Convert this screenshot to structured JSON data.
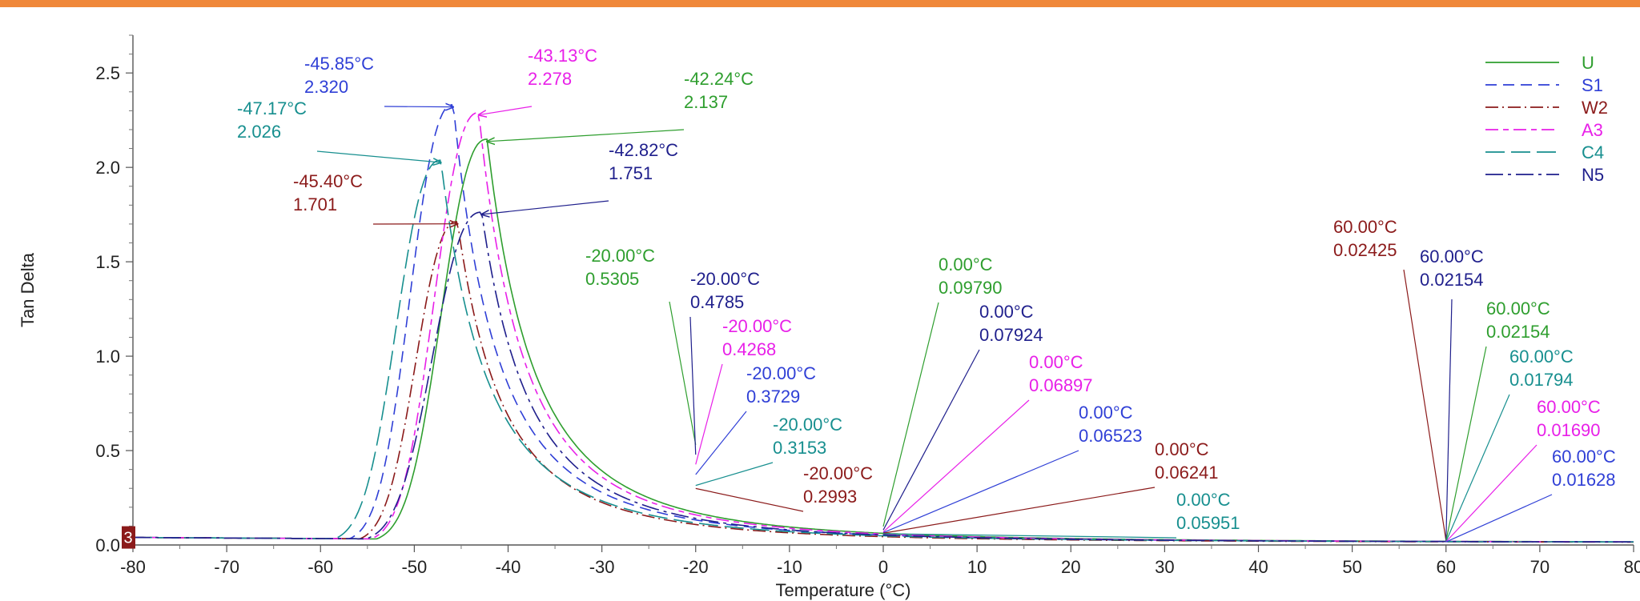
{
  "chart_data": {
    "type": "line",
    "xlabel": "Temperature (°C)",
    "ylabel": "Tan Delta",
    "xlim": [
      -80,
      80
    ],
    "ylim": [
      0,
      2.7
    ],
    "x_ticks": [
      "-80",
      "-70",
      "-60",
      "-50",
      "-40",
      "-30",
      "-20",
      "-10",
      "0",
      "10",
      "20",
      "30",
      "40",
      "50",
      "60",
      "70",
      "80"
    ],
    "y_ticks": [
      "0.0",
      "0.5",
      "1.0",
      "1.5",
      "2.0",
      "2.5"
    ],
    "marker_label": "3",
    "grid": false,
    "legend_position": "top-right",
    "series": [
      {
        "name": "U",
        "color": "#2e9e2e",
        "dash": "",
        "peak_x": -42.24,
        "peak_y": 2.137,
        "w_left": 6.2,
        "w_right": 13.0
      },
      {
        "name": "S1",
        "color": "#2f3fd6",
        "dash": "14,8",
        "peak_x": -45.85,
        "peak_y": 2.32,
        "w_left": 5.8,
        "w_right": 12.2
      },
      {
        "name": "W2",
        "color": "#8b1a1a",
        "dash": "16,5,2,5",
        "peak_x": -45.4,
        "peak_y": 1.701,
        "w_left": 5.6,
        "w_right": 12.6
      },
      {
        "name": "A3",
        "color": "#e820e8",
        "dash": "16,6,7,6",
        "peak_x": -43.13,
        "peak_y": 2.278,
        "w_left": 6.0,
        "w_right": 12.4
      },
      {
        "name": "C4",
        "color": "#178f8f",
        "dash": "24,8",
        "peak_x": -47.17,
        "peak_y": 2.026,
        "w_left": 6.0,
        "w_right": 12.8
      },
      {
        "name": "N5",
        "color": "#1f1f8c",
        "dash": "22,6,4,6",
        "peak_x": -42.82,
        "peak_y": 1.751,
        "w_left": 6.6,
        "w_right": 13.2
      }
    ],
    "annotations": [
      {
        "line1": "-45.85°C",
        "line2": "2.320",
        "x": -45.85,
        "y": 2.32,
        "color": "#2f3fd6"
      },
      {
        "line1": "-43.13°C",
        "line2": "2.278",
        "x": -43.13,
        "y": 2.278,
        "color": "#e820e8"
      },
      {
        "line1": "-42.24°C",
        "line2": "2.137",
        "x": -42.24,
        "y": 2.137,
        "color": "#2e9e2e"
      },
      {
        "line1": "-47.17°C",
        "line2": "2.026",
        "x": -47.17,
        "y": 2.026,
        "color": "#178f8f"
      },
      {
        "line1": "-42.82°C",
        "line2": "1.751",
        "x": -42.82,
        "y": 1.751,
        "color": "#1f1f8c"
      },
      {
        "line1": "-45.40°C",
        "line2": "1.701",
        "x": -45.4,
        "y": 1.701,
        "color": "#8b1a1a"
      },
      {
        "line1": "-20.00°C",
        "line2": "0.5305",
        "x": -20,
        "y": 0.5305,
        "color": "#2e9e2e"
      },
      {
        "line1": "-20.00°C",
        "line2": "0.4785",
        "x": -20,
        "y": 0.4785,
        "color": "#1f1f8c"
      },
      {
        "line1": "-20.00°C",
        "line2": "0.4268",
        "x": -20,
        "y": 0.4268,
        "color": "#e820e8"
      },
      {
        "line1": "-20.00°C",
        "line2": "0.3729",
        "x": -20,
        "y": 0.3729,
        "color": "#2f3fd6"
      },
      {
        "line1": "-20.00°C",
        "line2": "0.3153",
        "x": -20,
        "y": 0.3153,
        "color": "#178f8f"
      },
      {
        "line1": "-20.00°C",
        "line2": "0.2993",
        "x": -20,
        "y": 0.2993,
        "color": "#8b1a1a"
      },
      {
        "line1": "0.00°C",
        "line2": "0.09790",
        "x": 0,
        "y": 0.0979,
        "color": "#2e9e2e"
      },
      {
        "line1": "0.00°C",
        "line2": "0.07924",
        "x": 0,
        "y": 0.07924,
        "color": "#1f1f8c"
      },
      {
        "line1": "0.00°C",
        "line2": "0.06897",
        "x": 0,
        "y": 0.06897,
        "color": "#e820e8"
      },
      {
        "line1": "0.00°C",
        "line2": "0.06523",
        "x": 0,
        "y": 0.06523,
        "color": "#2f3fd6"
      },
      {
        "line1": "0.00°C",
        "line2": "0.06241",
        "x": 0,
        "y": 0.06241,
        "color": "#8b1a1a"
      },
      {
        "line1": "0.00°C",
        "line2": "0.05951",
        "x": 0,
        "y": 0.05951,
        "color": "#178f8f"
      },
      {
        "line1": "60.00°C",
        "line2": "0.02425",
        "x": 60,
        "y": 0.02425,
        "color": "#8b1a1a"
      },
      {
        "line1": "60.00°C",
        "line2": "0.02154",
        "x": 60,
        "y": 0.02154,
        "color": "#1f1f8c"
      },
      {
        "line1": "60.00°C",
        "line2": "0.02154",
        "x": 60,
        "y": 0.02154,
        "color": "#2e9e2e"
      },
      {
        "line1": "60.00°C",
        "line2": "0.01794",
        "x": 60,
        "y": 0.01794,
        "color": "#178f8f"
      },
      {
        "line1": "60.00°C",
        "line2": "0.01690",
        "x": 60,
        "y": 0.0169,
        "color": "#e820e8"
      },
      {
        "line1": "60.00°C",
        "line2": "0.01628",
        "x": 60,
        "y": 0.01628,
        "color": "#2f3fd6"
      }
    ]
  }
}
